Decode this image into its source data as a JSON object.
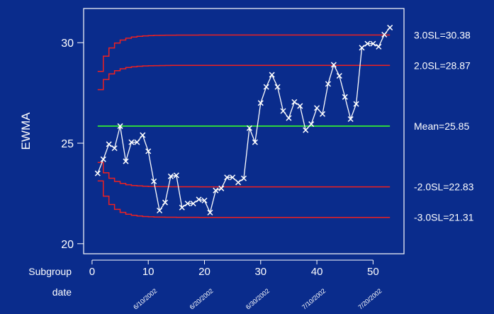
{
  "chart_data": {
    "type": "line",
    "ylabel": "EWMA",
    "xlabel_line1": "Subgroup",
    "xlabel_line2": "date",
    "xlim": [
      -1.5,
      55.5
    ],
    "ylim": [
      19.5,
      31.7
    ],
    "x_ticks": [
      0,
      10,
      20,
      30,
      40,
      50
    ],
    "y_ticks": [
      20,
      25,
      30
    ],
    "date_ticks": [
      {
        "x": 7,
        "label": "6/10/2002"
      },
      {
        "x": 17,
        "label": "6/20/2002"
      },
      {
        "x": 27,
        "label": "6/30/2002"
      },
      {
        "x": 37,
        "label": "7/10/2002"
      },
      {
        "x": 47,
        "label": "7/20/2002"
      }
    ],
    "center_line": {
      "label": "Mean=25.85",
      "value": 25.85,
      "color": "#33ee33"
    },
    "limits": [
      {
        "label": "3.0SL=30.38",
        "value": 30.38,
        "sigma": 3.0
      },
      {
        "label": "2.0SL=28.87",
        "value": 28.87,
        "sigma": 2.0
      },
      {
        "label": "-2.0SL=22.83",
        "value": 22.83,
        "sigma": -2.0
      },
      {
        "label": "-3.0SL=21.31",
        "value": 21.31,
        "sigma": -3.0
      }
    ],
    "limit_color": "#ee2020",
    "series_color": "#ffffff",
    "x": [
      1,
      2,
      3,
      4,
      5,
      6,
      7,
      8,
      9,
      10,
      11,
      12,
      13,
      14,
      15,
      16,
      17,
      18,
      19,
      20,
      21,
      22,
      23,
      24,
      25,
      26,
      27,
      28,
      29,
      30,
      31,
      32,
      33,
      34,
      35,
      36,
      37,
      38,
      39,
      40,
      41,
      42,
      43,
      44,
      45,
      46,
      47,
      48,
      49,
      50,
      51,
      52,
      53
    ],
    "values": [
      23.5,
      24.2,
      24.95,
      24.75,
      25.85,
      24.1,
      25.05,
      25.05,
      25.4,
      24.6,
      23.1,
      21.65,
      22.05,
      23.35,
      23.4,
      21.8,
      22.0,
      22.0,
      22.2,
      22.15,
      21.55,
      22.65,
      22.75,
      23.3,
      23.3,
      23.05,
      23.25,
      25.75,
      25.05,
      27.0,
      27.8,
      28.4,
      27.8,
      26.6,
      26.25,
      27.05,
      26.85,
      25.65,
      25.95,
      26.75,
      26.45,
      27.95,
      28.9,
      28.35,
      27.3,
      26.2,
      26.95,
      29.75,
      29.95,
      29.95,
      29.8,
      30.4,
      30.75
    ]
  }
}
